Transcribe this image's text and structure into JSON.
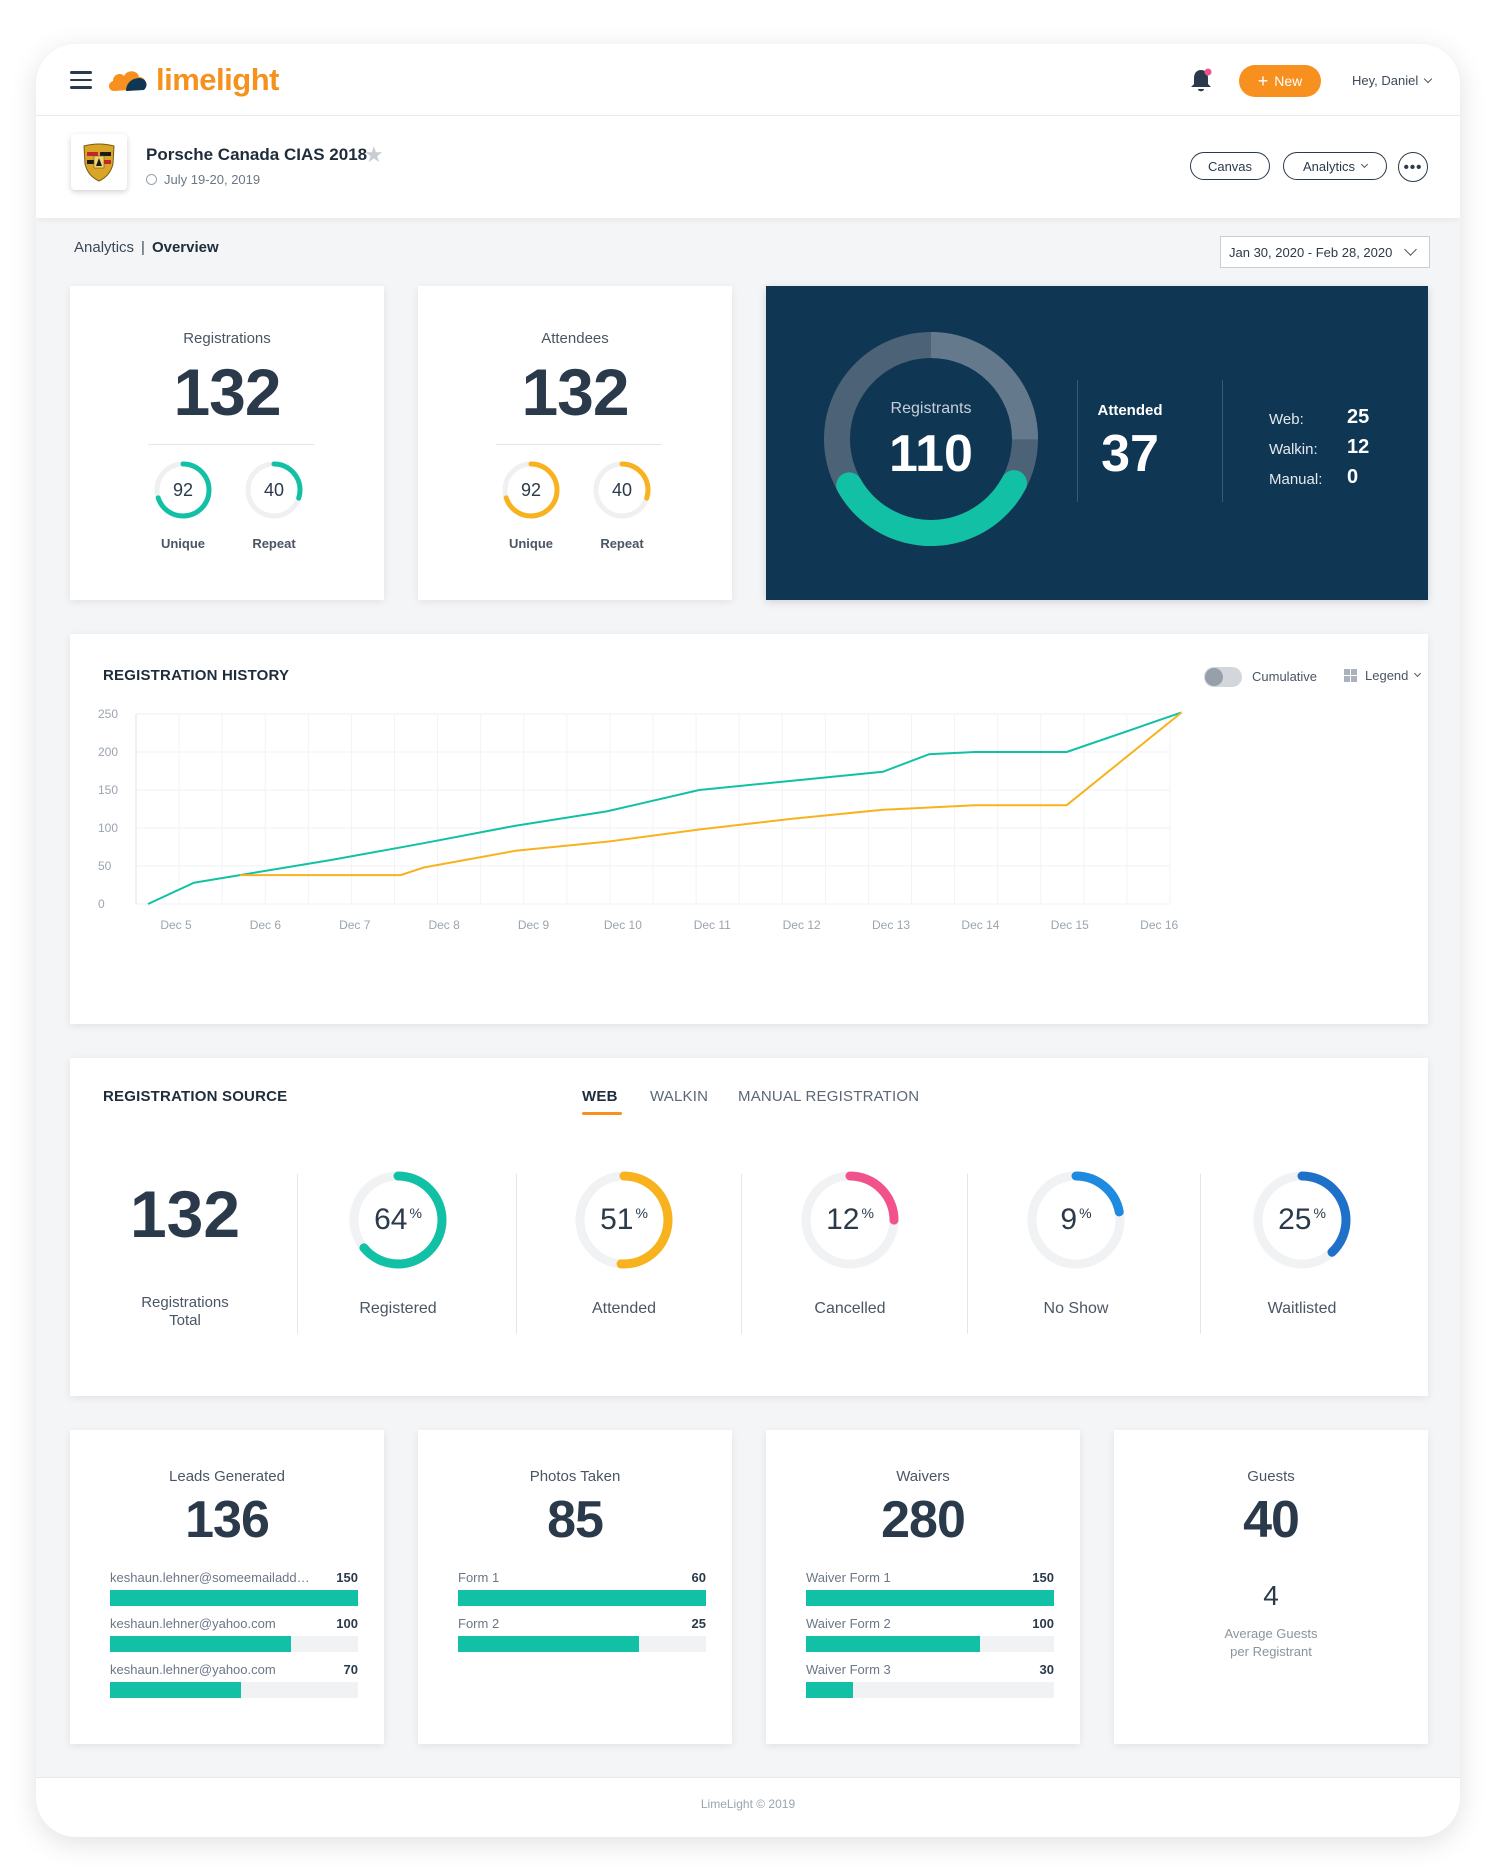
{
  "brand": {
    "name": "limelight",
    "accent": "#f7901e",
    "teal": "#12c1a5",
    "yellow": "#f7b21e",
    "pink": "#f2528b",
    "blue": "#1e8be0",
    "dark": "#0f3653"
  },
  "topbar": {
    "new_label": "New",
    "greeting": "Hey, Daniel",
    "icons": [
      "menu-icon",
      "bell-icon",
      "chevron-down-icon"
    ]
  },
  "event": {
    "title": "Porsche Canada CIAS 2018",
    "date": "July 19-20, 2019",
    "canvas_label": "Canvas",
    "analytics_label": "Analytics",
    "more_label": "•••"
  },
  "breadcrumb": {
    "parent": "Analytics",
    "separator": "|",
    "current": "Overview"
  },
  "date_range": "Jan 30, 2020 - Feb 28, 2020",
  "registrations": {
    "label": "Registrations",
    "total": "132",
    "unique": "92",
    "repeat": "40",
    "unique_label": "Unique",
    "repeat_label": "Repeat",
    "unique_fraction": 0.7,
    "repeat_fraction": 0.3
  },
  "attendees": {
    "label": "Attendees",
    "total": "132",
    "unique": "92",
    "repeat": "40",
    "unique_label": "Unique",
    "repeat_label": "Repeat",
    "unique_fraction": 0.7,
    "repeat_fraction": 0.3
  },
  "summary": {
    "ring_label": "Registrants",
    "ring_value": "110",
    "attended_fraction": 0.34,
    "attended_label": "Attended",
    "attended_value": "37",
    "sources": [
      {
        "label": "Web:",
        "value": "25"
      },
      {
        "label": "Walkin:",
        "value": "12"
      },
      {
        "label": "Manual:",
        "value": "0"
      }
    ]
  },
  "history": {
    "title": "REGISTRATION HISTORY",
    "cumulative_label": "Cumulative",
    "legend_label": "Legend"
  },
  "chart_data": {
    "type": "line",
    "title": "REGISTRATION HISTORY",
    "xlabel": "",
    "ylabel": "",
    "ylim": [
      0,
      250
    ],
    "yticks": [
      0,
      50,
      100,
      150,
      200,
      250
    ],
    "x": [
      "Dec 5",
      "Dec 6",
      "Dec 7",
      "Dec 8",
      "Dec 9",
      "Dec 10",
      "Dec 11",
      "Dec 12",
      "Dec 13",
      "Dec 14",
      "Dec 15",
      "Dec 16"
    ],
    "series": [
      {
        "name": "Registered",
        "color": "#12c1a5",
        "x": [
          0,
          0.5,
          1,
          2,
          3,
          4,
          5,
          6,
          7,
          8,
          8.5,
          9,
          10,
          11.25
        ],
        "values": [
          0,
          28,
          38,
          58,
          80,
          103,
          122,
          150,
          162,
          174,
          197,
          200,
          200,
          252
        ]
      },
      {
        "name": "Attended",
        "color": "#f7b21e",
        "x": [
          1,
          1.5,
          2,
          2.75,
          3,
          4,
          5,
          6,
          7,
          8,
          9,
          10,
          11.25
        ],
        "values": [
          38,
          38,
          38,
          38,
          48,
          70,
          82,
          98,
          112,
          124,
          130,
          130,
          252
        ]
      }
    ]
  },
  "reg_source": {
    "title": "REGISTRATION SOURCE",
    "tabs": [
      "WEB",
      "WALKIN",
      "MANUAL REGISTRATION"
    ],
    "total": "132",
    "total_label_1": "Registrations",
    "total_label_2": "Total",
    "items": [
      {
        "pct": "64",
        "unit": "%",
        "label": "Registered",
        "fraction": 0.64,
        "color": "#12c1a5"
      },
      {
        "pct": "51",
        "unit": "%",
        "label": "Attended",
        "fraction": 0.51,
        "color": "#f7b21e"
      },
      {
        "pct": "12",
        "unit": "%",
        "label": "Cancelled",
        "fraction": 0.25,
        "color": "#f2528b"
      },
      {
        "pct": "9",
        "unit": "%",
        "label": "No Show",
        "fraction": 0.22,
        "color": "#1e8be0"
      },
      {
        "pct": "25",
        "unit": "%",
        "label": "Waitlisted",
        "fraction": 0.38,
        "color": "#1e70c8"
      }
    ]
  },
  "leads": {
    "label": "Leads Generated",
    "total": "136",
    "rows": [
      {
        "label": "keshaun.lehner@someemailaddr...",
        "value": "150",
        "fraction": 1.0
      },
      {
        "label": "keshaun.lehner@yahoo.com",
        "value": "100",
        "fraction": 0.73
      },
      {
        "label": "keshaun.lehner@yahoo.com",
        "value": "70",
        "fraction": 0.53
      }
    ]
  },
  "photos": {
    "label": "Photos Taken",
    "total": "85",
    "rows": [
      {
        "label": "Form 1",
        "value": "60",
        "fraction": 1.0
      },
      {
        "label": "Form 2",
        "value": "25",
        "fraction": 0.73
      }
    ]
  },
  "waivers": {
    "label": "Waivers",
    "total": "280",
    "rows": [
      {
        "label": "Waiver Form 1",
        "value": "150",
        "fraction": 1.0
      },
      {
        "label": "Waiver Form 2",
        "value": "100",
        "fraction": 0.7
      },
      {
        "label": "Waiver Form 3",
        "value": "30",
        "fraction": 0.19
      }
    ]
  },
  "guests": {
    "label": "Guests",
    "total": "40",
    "average": "4",
    "average_label_1": "Average Guests",
    "average_label_2": "per Registrant"
  },
  "footer": "LimeLight © 2019"
}
